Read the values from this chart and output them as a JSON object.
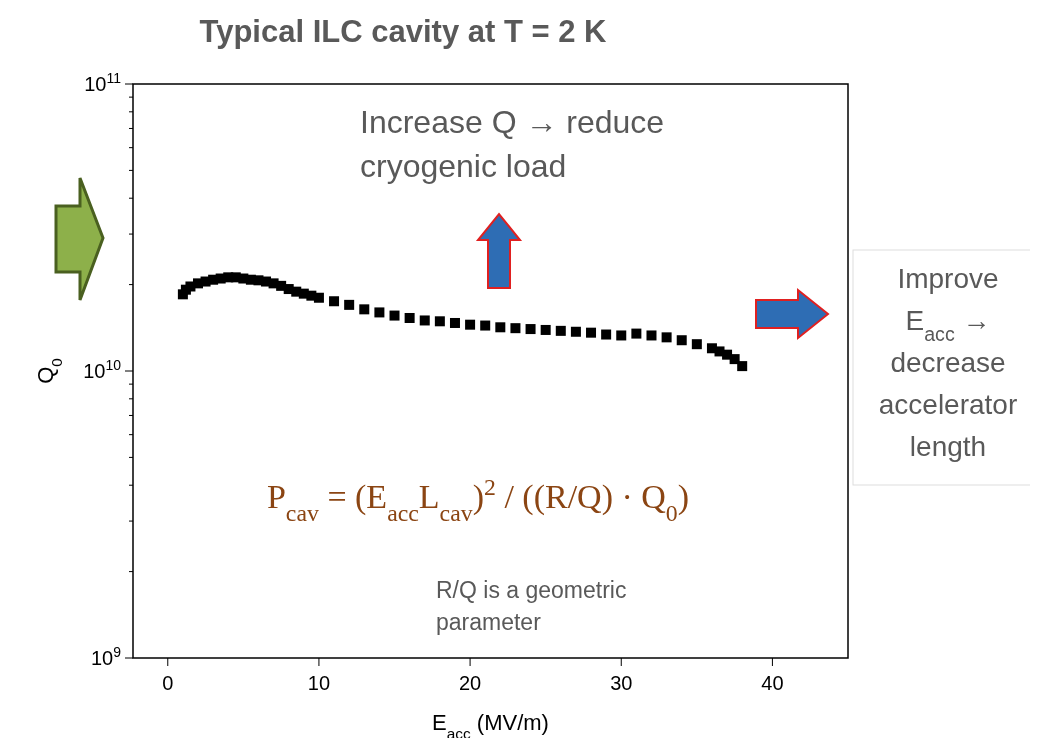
{
  "chart_data": {
    "type": "scatter",
    "title": "Typical ILC cavity at T = 2 K",
    "xlabel": "E$_{acc}$ (MV/m)",
    "ylabel": "Q$_{0}$",
    "log": "y",
    "marker": "square",
    "grid": false,
    "xlim": [
      -2.3,
      45
    ],
    "xticks": [
      0,
      10,
      20,
      30,
      40
    ],
    "ylim": [
      1000000000.0,
      100000000000.0
    ],
    "yticks": [
      {
        "value": 1000000000.0,
        "label": "10$^{9}$"
      },
      {
        "value": 2000000000.0,
        "label": null
      },
      {
        "value": 3000000000.0,
        "label": null
      },
      {
        "value": 4000000000.0,
        "label": null
      },
      {
        "value": 5000000000.0,
        "label": null
      },
      {
        "value": 6000000000.0,
        "label": null
      },
      {
        "value": 7000000000.0,
        "label": null
      },
      {
        "value": 8000000000.0,
        "label": null
      },
      {
        "value": 9000000000.0,
        "label": null
      },
      {
        "value": 10000000000.0,
        "label": "10$^{10}$"
      },
      {
        "value": 20000000000.0,
        "label": null
      },
      {
        "value": 30000000000.0,
        "label": null
      },
      {
        "value": 40000000000.0,
        "label": null
      },
      {
        "value": 50000000000.0,
        "label": null
      },
      {
        "value": 60000000000.0,
        "label": null
      },
      {
        "value": 70000000000.0,
        "label": null
      },
      {
        "value": 80000000000.0,
        "label": null
      },
      {
        "value": 90000000000.0,
        "label": null
      },
      {
        "value": 100000000000.0,
        "label": "10$^{11}$"
      }
    ],
    "series": [
      {
        "color": "#000000",
        "x": [
          1,
          1.2,
          1.5,
          2,
          2.5,
          3,
          3.5,
          4,
          4.5,
          5,
          5.5,
          6,
          6.5,
          7,
          7.5,
          8,
          8.5,
          9,
          9.5,
          10,
          11,
          12,
          13,
          14,
          15,
          16,
          17,
          18,
          19,
          20,
          21,
          22,
          23,
          24,
          25,
          26,
          27,
          28,
          29,
          30,
          31,
          32,
          33,
          34,
          35,
          36,
          36.5,
          37,
          37.5,
          38
        ],
        "values": [
          18500000000.0,
          19200000000.0,
          19700000000.0,
          20200000000.0,
          20500000000.0,
          20800000000.0,
          21000000000.0,
          21200000000.0,
          21200000000.0,
          21000000000.0,
          20800000000.0,
          20700000000.0,
          20500000000.0,
          20200000000.0,
          19800000000.0,
          19300000000.0,
          18900000000.0,
          18600000000.0,
          18300000000.0,
          18000000000.0,
          17500000000.0,
          17000000000.0,
          16400000000.0,
          16000000000.0,
          15600000000.0,
          15300000000.0,
          15000000000.0,
          14900000000.0,
          14700000000.0,
          14500000000.0,
          14400000000.0,
          14200000000.0,
          14100000000.0,
          14000000000.0,
          13900000000.0,
          13800000000.0,
          13700000000.0,
          13600000000.0,
          13400000000.0,
          13300000000.0,
          13500000000.0,
          13300000000.0,
          13100000000.0,
          12800000000.0,
          12400000000.0,
          12000000000.0,
          11700000000.0,
          11400000000.0,
          11000000000.0,
          10400000000.0
        ]
      }
    ],
    "annotations": [
      "Increase Q → reduce cryogenic load",
      "Improve E$_{acc}$ → decrease accelerator length",
      "P$_{cav}$ = (E$_{acc}$L$_{cav}$)$^{2}$ / ((R/Q) · Q$_{0}$)",
      "R/Q is a geometric parameter"
    ]
  }
}
